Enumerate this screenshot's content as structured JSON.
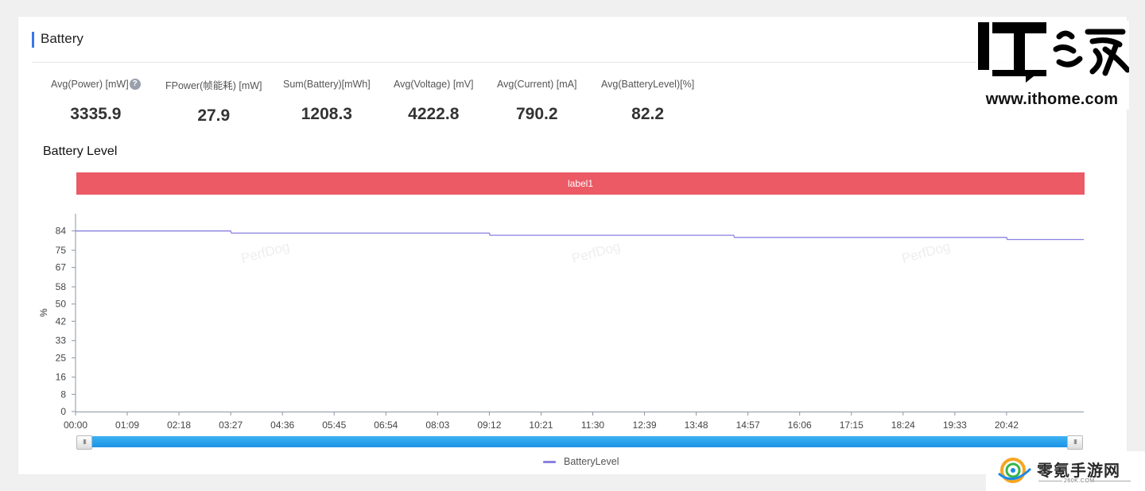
{
  "section": {
    "title": "Battery"
  },
  "metrics": [
    {
      "label": "Avg(Power) [mW]",
      "value": "3335.9",
      "has_help": true
    },
    {
      "label": "FPower(帧能耗) [mW]",
      "value": "27.9"
    },
    {
      "label": "Sum(Battery)[mWh]",
      "value": "1208.3"
    },
    {
      "label": "Avg(Voltage) [mV]",
      "value": "4222.8"
    },
    {
      "label": "Avg(Current) [mA]",
      "value": "790.2"
    },
    {
      "label": "Avg(BatteryLevel)[%]",
      "value": "82.2"
    }
  ],
  "help_icon": "question-icon",
  "chart_title": "Battery Level",
  "label_band": {
    "text": "label1",
    "color": "#ec5a66"
  },
  "watermark": "PerfDog",
  "slider": {
    "handle_glyph": "III",
    "start": 0,
    "end": 1,
    "color": "#1b93e6"
  },
  "legend": {
    "label": "BatteryLevel",
    "color": "#8a80e0"
  },
  "brand": {
    "ithome_logo": "IT之家",
    "ithome_url": "www.ithome.com",
    "corner_name": "零氪手游网",
    "corner_sub": "260K.COM"
  },
  "chart_data": {
    "type": "line",
    "ylabel": "%",
    "xlabel": "",
    "yticks": [
      "0",
      "8",
      "16",
      "25",
      "33",
      "42",
      "50",
      "58",
      "67",
      "75",
      "84"
    ],
    "ytick_values": [
      0,
      8,
      16,
      25,
      33,
      42,
      50,
      58,
      67,
      75,
      84
    ],
    "xticks": [
      "00:00",
      "01:09",
      "02:18",
      "03:27",
      "04:36",
      "05:45",
      "06:54",
      "08:03",
      "09:12",
      "10:21",
      "11:30",
      "12:39",
      "13:48",
      "14:57",
      "16:06",
      "17:15",
      "18:24",
      "19:33",
      "20:42"
    ],
    "xlim": [
      "00:00",
      "22:25"
    ],
    "ylim": [
      0,
      92
    ],
    "grid": false,
    "legend_position": "bottom",
    "series": [
      {
        "name": "BatteryLevel",
        "color": "#8a80e0",
        "x": [
          "00:00",
          "03:27",
          "03:28",
          "09:12",
          "09:13",
          "14:38",
          "14:39",
          "20:42",
          "20:43",
          "22:25"
        ],
        "values": [
          84,
          84,
          83,
          83,
          82,
          82,
          81,
          81,
          80,
          80
        ]
      }
    ]
  }
}
